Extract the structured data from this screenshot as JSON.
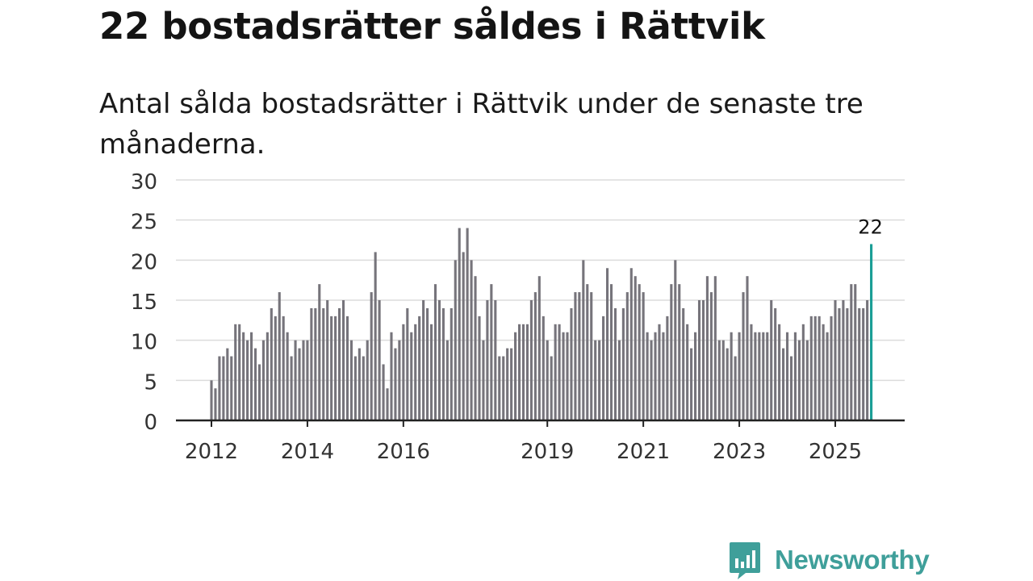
{
  "title": "22 bostadsrätter såldes i Rättvik",
  "subtitle": "Antal sålda bostadsrätter i Rättvik under de senaste tre månaderna.",
  "brand": {
    "name": "Newsworthy",
    "icon": "newsworthy-chart-bubble-icon",
    "color": "#3f9f9a"
  },
  "colors": {
    "bar": "#76747b",
    "highlight": "#1a9e96",
    "grid": "#dcdcdc",
    "axis": "#222222"
  },
  "chart_data": {
    "type": "bar",
    "title": "22 bostadsrätter såldes i Rättvik",
    "xlabel": "",
    "ylabel": "",
    "ylim": [
      0,
      30
    ],
    "yticks": [
      0,
      5,
      10,
      15,
      20,
      25,
      30
    ],
    "grid": true,
    "x_tick_labels": [
      {
        "label": "2012",
        "index": 0
      },
      {
        "label": "2014",
        "index": 24
      },
      {
        "label": "2016",
        "index": 48
      },
      {
        "label": "2019",
        "index": 84
      },
      {
        "label": "2021",
        "index": 108
      },
      {
        "label": "2023",
        "index": 132
      },
      {
        "label": "2025",
        "index": 156
      }
    ],
    "start": "2012-01",
    "frequency": "monthly",
    "values": [
      5,
      4,
      8,
      8,
      9,
      8,
      12,
      12,
      11,
      10,
      11,
      9,
      7,
      10,
      11,
      14,
      13,
      16,
      13,
      11,
      8,
      10,
      9,
      10,
      10,
      14,
      14,
      17,
      14,
      15,
      13,
      13,
      14,
      15,
      13,
      10,
      8,
      9,
      8,
      10,
      16,
      21,
      15,
      7,
      4,
      11,
      9,
      10,
      12,
      14,
      11,
      12,
      13,
      15,
      14,
      12,
      17,
      15,
      14,
      10,
      14,
      20,
      24,
      21,
      24,
      20,
      18,
      13,
      10,
      15,
      17,
      15,
      8,
      8,
      9,
      9,
      11,
      12,
      12,
      12,
      15,
      16,
      18,
      13,
      10,
      8,
      12,
      12,
      11,
      11,
      14,
      16,
      16,
      20,
      17,
      16,
      10,
      10,
      13,
      19,
      17,
      14,
      10,
      14,
      16,
      19,
      18,
      17,
      16,
      11,
      10,
      11,
      12,
      11,
      13,
      17,
      20,
      17,
      14,
      12,
      9,
      11,
      15,
      15,
      18,
      16,
      18,
      10,
      10,
      9,
      11,
      8,
      11,
      16,
      18,
      12,
      11,
      11,
      11,
      11,
      15,
      14,
      12,
      9,
      11,
      8,
      11,
      10,
      12,
      10,
      13,
      13,
      13,
      12,
      11,
      13,
      15,
      14,
      15,
      14,
      17,
      17,
      14,
      14,
      15,
      22
    ],
    "highlight": {
      "index": 165,
      "value": 22,
      "label": "22"
    }
  }
}
